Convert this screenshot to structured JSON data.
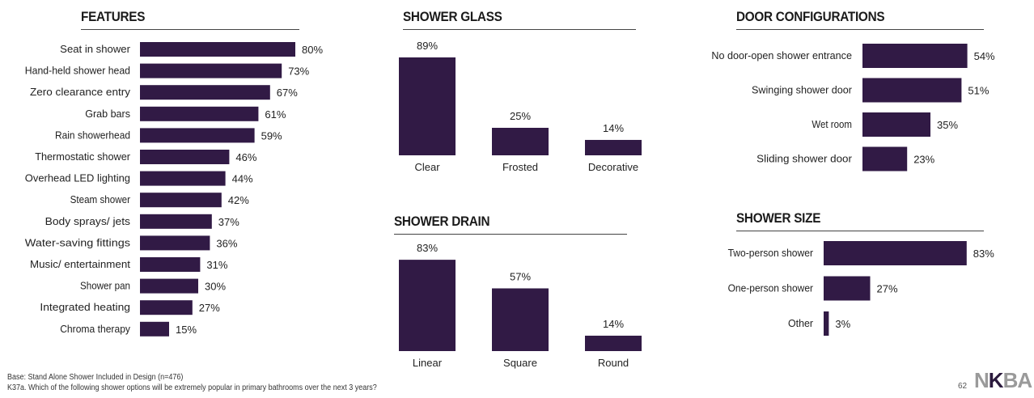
{
  "sections": {
    "features": "FEATURES",
    "shower_glass": "SHOWER GLASS",
    "door_configurations": "DOOR CONFIGURATIONS",
    "shower_drain": "SHOWER DRAIN",
    "shower_size": "SHOWER SIZE"
  },
  "colors": {
    "bar": "#311a45"
  },
  "footer": {
    "base": "Base: Stand Alone Shower Included in Design (n=476)",
    "question": "K37a. Which of the following shower options will be extremely popular in primary bathrooms over the next 3 years?",
    "page": "62"
  },
  "logo": {
    "part1": "N",
    "part2": "K",
    "part3": "BA"
  },
  "chart_data": [
    {
      "type": "bar",
      "orientation": "horizontal",
      "title": "FEATURES",
      "unit": "%",
      "categories": [
        "Seat in shower",
        "Hand-held shower head",
        "Zero clearance entry",
        "Grab bars",
        "Rain showerhead",
        "Thermostatic shower",
        "Overhead LED lighting",
        "Steam shower",
        "Body sprays/ jets",
        "Water-saving fittings",
        "Music/ entertainment",
        "Shower pan",
        "Integrated heating",
        "Chroma therapy"
      ],
      "values": [
        80,
        73,
        67,
        61,
        59,
        46,
        44,
        42,
        37,
        36,
        31,
        30,
        27,
        15
      ]
    },
    {
      "type": "bar",
      "orientation": "vertical",
      "title": "SHOWER GLASS",
      "unit": "%",
      "categories": [
        "Clear",
        "Frosted",
        "Decorative"
      ],
      "values": [
        89,
        25,
        14
      ]
    },
    {
      "type": "bar",
      "orientation": "horizontal",
      "title": "DOOR CONFIGURATIONS",
      "unit": "%",
      "categories": [
        "No door-open shower entrance",
        "Swinging shower door",
        "Wet room",
        "Sliding shower door"
      ],
      "values": [
        54,
        51,
        35,
        23
      ]
    },
    {
      "type": "bar",
      "orientation": "vertical",
      "title": "SHOWER DRAIN",
      "unit": "%",
      "categories": [
        "Linear",
        "Square",
        "Round"
      ],
      "values": [
        83,
        57,
        14
      ]
    },
    {
      "type": "bar",
      "orientation": "horizontal",
      "title": "SHOWER SIZE",
      "unit": "%",
      "categories": [
        "Two-person shower",
        "One-person shower",
        "Other"
      ],
      "values": [
        83,
        27,
        3
      ]
    }
  ]
}
